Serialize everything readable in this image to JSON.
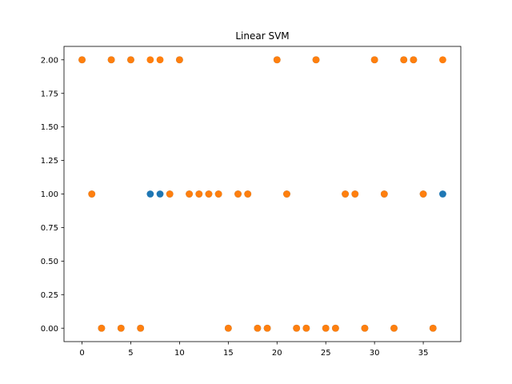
{
  "chart_data": {
    "type": "scatter",
    "title": "Linear SVM",
    "xlabel": "",
    "ylabel": "",
    "xlim": [
      -1.85,
      38.85
    ],
    "ylim": [
      -0.1,
      2.1
    ],
    "x_ticks": [
      0,
      5,
      10,
      15,
      20,
      25,
      30,
      35
    ],
    "x_tick_labels": [
      "0",
      "5",
      "10",
      "15",
      "20",
      "25",
      "30",
      "35"
    ],
    "y_ticks": [
      0,
      0.25,
      0.5,
      0.75,
      1,
      1.25,
      1.5,
      1.75,
      2
    ],
    "y_tick_labels": [
      "0.00",
      "0.25",
      "0.50",
      "0.75",
      "1.00",
      "1.25",
      "1.50",
      "1.75",
      "2.00"
    ],
    "grid": false,
    "legend": "none",
    "series": [
      {
        "color": "#1f77b4",
        "x": [
          0,
          1,
          2,
          3,
          4,
          5,
          6,
          7,
          8,
          9,
          10,
          11,
          12,
          13,
          14,
          15,
          16,
          17,
          18,
          19,
          20,
          21,
          22,
          23,
          24,
          25,
          26,
          27,
          28,
          29,
          30,
          31,
          32,
          33,
          34,
          35,
          36,
          37
        ],
        "y": [
          2,
          1,
          0,
          2,
          0,
          2,
          0,
          1,
          1,
          1,
          2,
          1,
          1,
          1,
          1,
          0,
          1,
          1,
          0,
          0,
          2,
          1,
          0,
          0,
          2,
          0,
          0,
          1,
          1,
          0,
          2,
          1,
          0,
          2,
          2,
          1,
          0,
          1
        ]
      },
      {
        "color": "#ff7f0e",
        "x": [
          0,
          1,
          2,
          3,
          4,
          5,
          6,
          7,
          8,
          9,
          10,
          11,
          12,
          13,
          14,
          15,
          16,
          17,
          18,
          19,
          20,
          21,
          22,
          23,
          24,
          25,
          26,
          27,
          28,
          29,
          30,
          31,
          32,
          33,
          34,
          35,
          36,
          37
        ],
        "y": [
          2,
          1,
          0,
          2,
          0,
          2,
          0,
          2,
          2,
          1,
          2,
          1,
          1,
          1,
          1,
          0,
          1,
          1,
          0,
          0,
          2,
          1,
          0,
          0,
          2,
          0,
          0,
          1,
          1,
          0,
          2,
          1,
          0,
          2,
          2,
          1,
          0,
          2
        ]
      }
    ]
  }
}
